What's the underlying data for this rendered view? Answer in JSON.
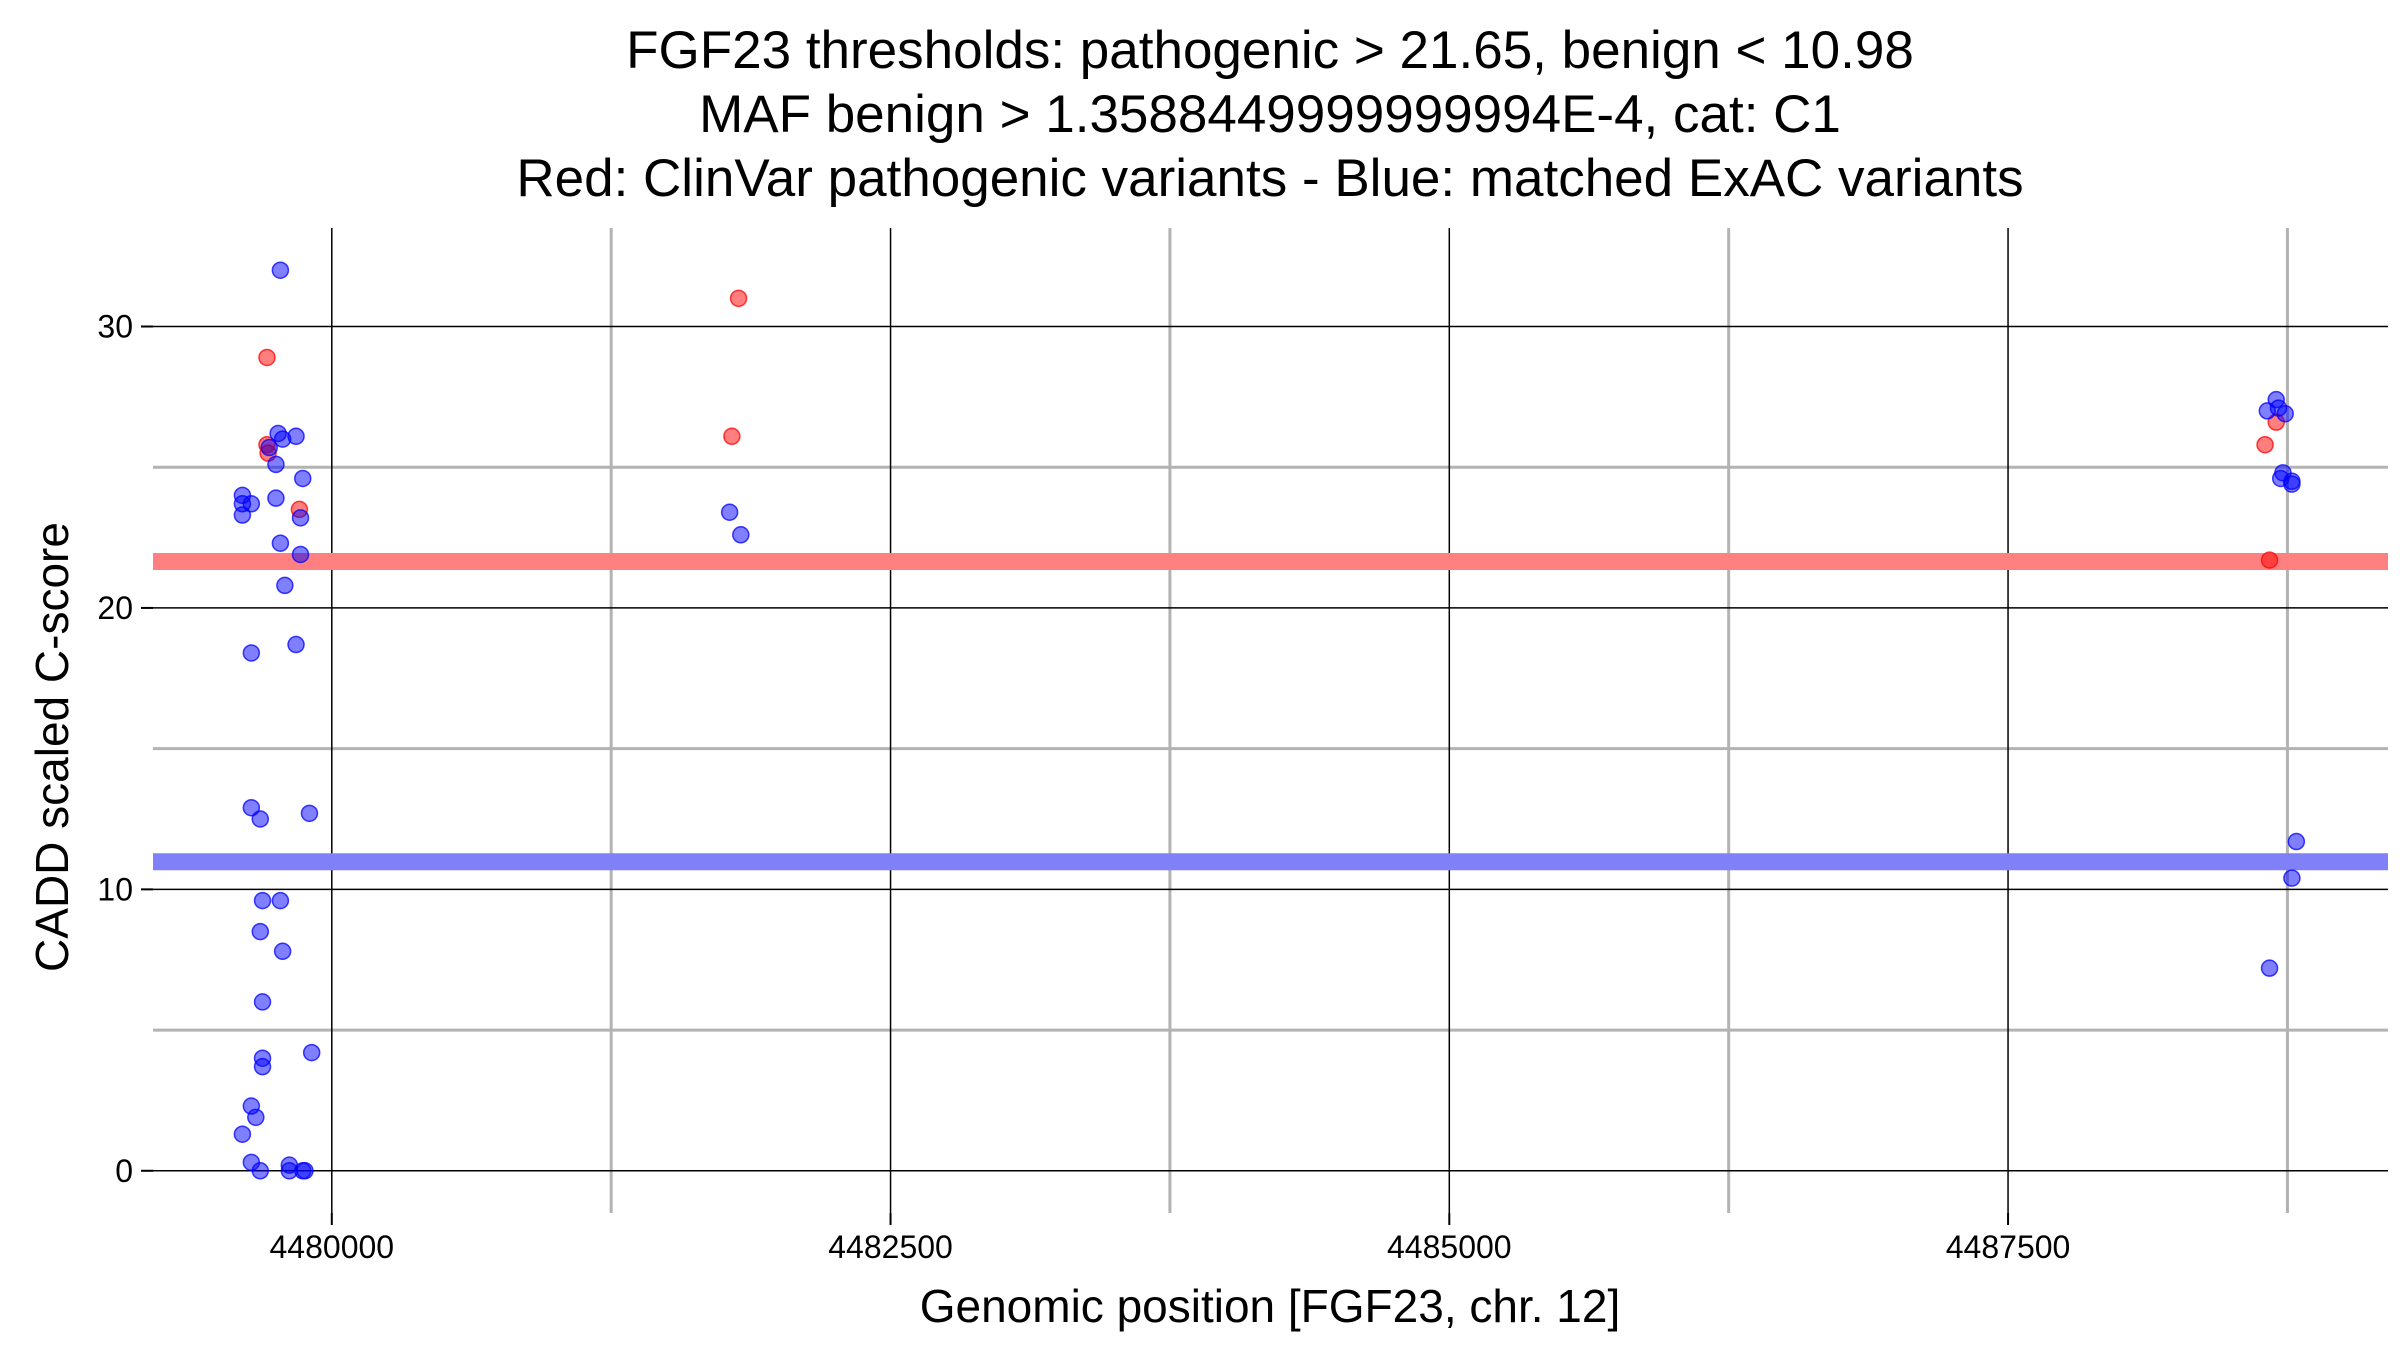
{
  "chart_data": {
    "type": "scatter",
    "title_lines": [
      "FGF23 thresholds: pathogenic > 21.65, benign < 10.98",
      "MAF benign > 1.3588449999999994E-4, cat: C1",
      "Red: ClinVar pathogenic variants - Blue: matched ExAC variants"
    ],
    "xlabel": "Genomic position [FGF23, chr. 12]",
    "ylabel": "CADD scaled C-score",
    "xlim": [
      4479200,
      4489200
    ],
    "ylim": [
      -1.5,
      33.5
    ],
    "x_ticks": [
      4480000,
      4482500,
      4485000,
      4487500
    ],
    "x_tick_labels": [
      "4480000",
      "4482500",
      "4485000",
      "4487500"
    ],
    "x_minor_grid": [
      4481250,
      4483750,
      4486250,
      4488750
    ],
    "y_ticks": [
      0,
      10,
      20,
      30
    ],
    "y_tick_labels": [
      "0",
      "10",
      "20",
      "30"
    ],
    "y_minor_grid": [
      5,
      15,
      25
    ],
    "grid": true,
    "thresholds": [
      {
        "name": "pathogenic",
        "value": 21.65,
        "color": "#ff8080"
      },
      {
        "name": "benign",
        "value": 10.98,
        "color": "#8080f8"
      }
    ],
    "colors": {
      "pathogenic": "#ff0000",
      "benign": "#0000ff",
      "major_grid": "#000000",
      "minor_grid": "#b3b3b3"
    },
    "series": [
      {
        "name": "ClinVar pathogenic variants",
        "color": "#ff0000",
        "points": [
          [
            4479710,
            28.9
          ],
          [
            4479710,
            25.8
          ],
          [
            4479715,
            25.5
          ],
          [
            4479855,
            23.5
          ],
          [
            4481820,
            31.0
          ],
          [
            4481790,
            26.1
          ],
          [
            4488650,
            25.8
          ],
          [
            4488700,
            26.6
          ],
          [
            4488670,
            21.7
          ]
        ]
      },
      {
        "name": "matched ExAC variants",
        "color": "#0000ff",
        "points": [
          [
            4479770,
            32.0
          ],
          [
            4479760,
            26.2
          ],
          [
            4479780,
            26.0
          ],
          [
            4479840,
            26.1
          ],
          [
            4479720,
            25.7
          ],
          [
            4479750,
            25.1
          ],
          [
            4479870,
            24.6
          ],
          [
            4479600,
            24.0
          ],
          [
            4479600,
            23.7
          ],
          [
            4479640,
            23.7
          ],
          [
            4479600,
            23.3
          ],
          [
            4479750,
            23.9
          ],
          [
            4479860,
            23.2
          ],
          [
            4479770,
            22.3
          ],
          [
            4479860,
            21.9
          ],
          [
            4479790,
            20.8
          ],
          [
            4479840,
            18.7
          ],
          [
            4479640,
            18.4
          ],
          [
            4479640,
            12.9
          ],
          [
            4479680,
            12.5
          ],
          [
            4479900,
            12.7
          ],
          [
            4479690,
            9.6
          ],
          [
            4479770,
            9.6
          ],
          [
            4479680,
            8.5
          ],
          [
            4479780,
            7.8
          ],
          [
            4479690,
            6.0
          ],
          [
            4479690,
            4.0
          ],
          [
            4479690,
            3.7
          ],
          [
            4479910,
            4.2
          ],
          [
            4479640,
            2.3
          ],
          [
            4479660,
            1.9
          ],
          [
            4479600,
            1.3
          ],
          [
            4479640,
            0.3
          ],
          [
            4479680,
            0.0
          ],
          [
            4479810,
            0.2
          ],
          [
            4479810,
            0.0
          ],
          [
            4479870,
            0.0
          ],
          [
            4479880,
            0.0
          ],
          [
            4481780,
            23.4
          ],
          [
            4481830,
            22.6
          ],
          [
            4488660,
            27.0
          ],
          [
            4488700,
            27.4
          ],
          [
            4488710,
            27.1
          ],
          [
            4488740,
            26.9
          ],
          [
            4488730,
            24.8
          ],
          [
            4488720,
            24.6
          ],
          [
            4488770,
            24.5
          ],
          [
            4488770,
            24.4
          ],
          [
            4488790,
            11.7
          ],
          [
            4488770,
            10.4
          ],
          [
            4488670,
            7.2
          ]
        ]
      }
    ]
  }
}
